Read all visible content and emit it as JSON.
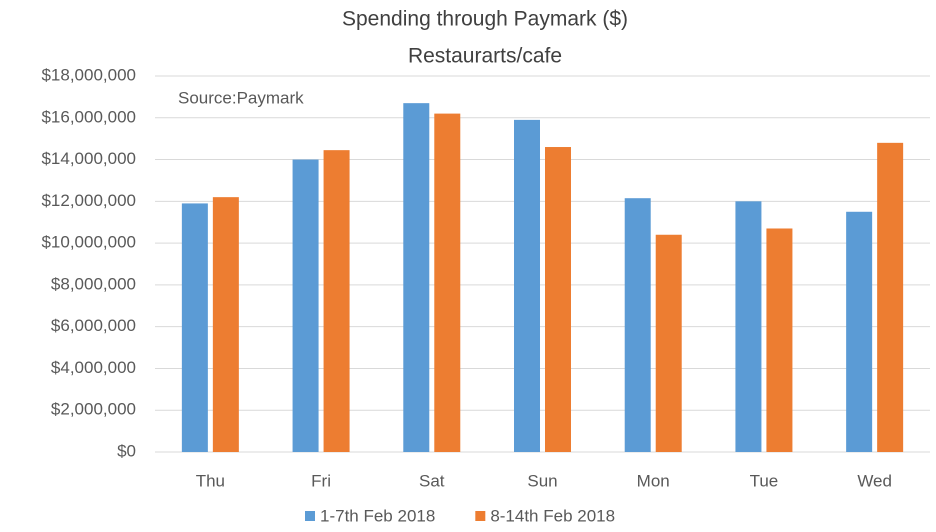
{
  "chart_data": {
    "type": "bar",
    "title": "Spending through Paymark ($)",
    "subtitle": "Restaurarts/cafe",
    "annotation": "Source:Paymark",
    "categories": [
      "Thu",
      "Fri",
      "Sat",
      "Sun",
      "Mon",
      "Tue",
      "Wed"
    ],
    "series": [
      {
        "name": "1-7th Feb 2018",
        "color": "#5b9bd5",
        "values": [
          11900000,
          14000000,
          16700000,
          15900000,
          12150000,
          12000000,
          11500000
        ]
      },
      {
        "name": "8-14th Feb 2018",
        "color": "#ed7d31",
        "values": [
          12200000,
          14450000,
          16200000,
          14600000,
          10400000,
          10700000,
          14800000
        ]
      }
    ],
    "ylim": [
      0,
      18000000
    ],
    "yticks": [
      {
        "value": 0,
        "label": "$0"
      },
      {
        "value": 2000000,
        "label": "$2,000,000"
      },
      {
        "value": 4000000,
        "label": "$4,000,000"
      },
      {
        "value": 6000000,
        "label": "$6,000,000"
      },
      {
        "value": 8000000,
        "label": "$8,000,000"
      },
      {
        "value": 10000000,
        "label": "$10,000,000"
      },
      {
        "value": 12000000,
        "label": "$12,000,000"
      },
      {
        "value": 14000000,
        "label": "$14,000,000"
      },
      {
        "value": 16000000,
        "label": "$16,000,000"
      },
      {
        "value": 18000000,
        "label": "$18,000,000"
      }
    ],
    "grid": true,
    "legend": "bottom"
  }
}
